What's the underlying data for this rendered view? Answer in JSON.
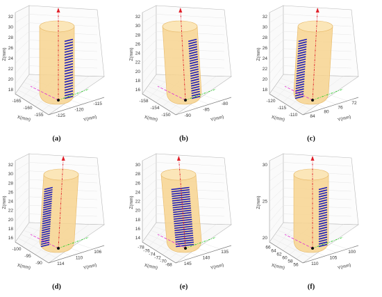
{
  "colors": {
    "cylinder": "#f7d48f",
    "cylinder_top": "#fbe6b8",
    "cylinder_edge": "#e7b866",
    "scan_lines": "#1a1ab8",
    "axis_z": "#e0202a",
    "axis_x": "#e23bd1",
    "axis_y": "#2fd12f",
    "box": "#b8b8b8",
    "grid": "#e6e6e6"
  },
  "chart_data": [
    {
      "type": "scatter",
      "panel": "a",
      "caption": "(a)",
      "xlabel": "X(mm)",
      "ylabel": "Y(mm)",
      "zlabel": "Z(mm)",
      "z_ticks": [
        "32",
        "30",
        "28",
        "26",
        "24",
        "22",
        "20",
        "18"
      ],
      "x_ticks": [
        "-165",
        "-160",
        "-155"
      ],
      "y_ticks": [
        "-125",
        "-120",
        "-115"
      ],
      "strip": "right",
      "n_lines": 22
    },
    {
      "type": "scatter",
      "panel": "b",
      "caption": "(b)",
      "xlabel": "X(mm)",
      "ylabel": "Y(mm)",
      "zlabel": "Z(mm)",
      "z_ticks": [
        "32",
        "30",
        "28",
        "26",
        "24",
        "22",
        "20",
        "18",
        "16"
      ],
      "x_ticks": [
        "-158",
        "-154",
        "-150"
      ],
      "y_ticks": [
        "-90",
        "-85",
        "-80"
      ],
      "strip": "right",
      "n_lines": 24
    },
    {
      "type": "scatter",
      "panel": "c",
      "caption": "(c)",
      "xlabel": "X(mm)",
      "ylabel": "Y(mm)",
      "zlabel": "Z(mm)",
      "z_ticks": [
        "32",
        "30",
        "28",
        "26",
        "24",
        "22",
        "20",
        "18"
      ],
      "x_ticks": [
        "-120",
        "-115",
        "-110"
      ],
      "y_ticks": [
        "84",
        "80",
        "76",
        "72"
      ],
      "strip": "left",
      "n_lines": 24
    },
    {
      "type": "scatter",
      "panel": "d",
      "caption": "(d)",
      "xlabel": "X(mm)",
      "ylabel": "Y(mm)",
      "zlabel": "Z(mm)",
      "z_ticks": [
        "32",
        "30",
        "28",
        "26",
        "24",
        "22",
        "20",
        "18",
        "16"
      ],
      "x_ticks": [
        "-100",
        "-95",
        "-90"
      ],
      "y_ticks": [
        "114",
        "110",
        "106"
      ],
      "strip": "left",
      "n_lines": 26
    },
    {
      "type": "scatter",
      "panel": "e",
      "caption": "(e)",
      "xlabel": "X(mm)",
      "ylabel": "Y(mm)",
      "zlabel": "Z(mm)",
      "z_ticks": [
        "30",
        "28",
        "26",
        "24",
        "22",
        "20",
        "18",
        "16",
        "14"
      ],
      "x_ticks": [
        "-78",
        "-76",
        "-74",
        "-72",
        "-70",
        "-68"
      ],
      "y_ticks": [
        "145",
        "140",
        "135"
      ],
      "strip": "front",
      "n_lines": 26
    },
    {
      "type": "scatter",
      "panel": "f",
      "caption": "(f)",
      "xlabel": "X(mm)",
      "ylabel": "Y(mm)",
      "zlabel": "Z(mm)",
      "z_ticks": [
        "30",
        "25",
        "20"
      ],
      "x_ticks": [
        "66",
        "64",
        "62",
        "60",
        "58",
        "56"
      ],
      "y_ticks": [
        "110",
        "105",
        "100"
      ],
      "strip": "right",
      "n_lines": 24
    }
  ]
}
